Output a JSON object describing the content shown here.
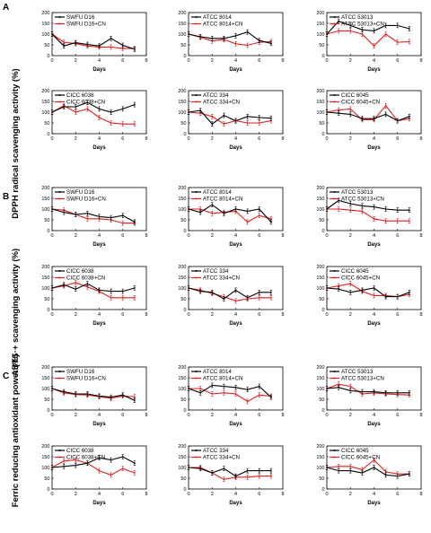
{
  "series_colors": {
    "control": "#000000",
    "cn": "#e02020"
  },
  "x_ticks": [
    "0",
    "2",
    "4",
    "6",
    "8"
  ],
  "y_ticks": [
    "0",
    "50",
    "100",
    "150",
    "200"
  ],
  "x_title": "Days",
  "sections": [
    {
      "letter": "A",
      "ylabel": "DPPH radical scavenging activity (%)"
    },
    {
      "letter": "B",
      "ylabel": "ABTS·+ scavenging activity (%)"
    },
    {
      "letter": "C",
      "ylabel": "Ferric reducing antioxidant power (%)"
    }
  ],
  "chart_data": [
    {
      "type": "line",
      "section": "A",
      "strain": "SWFU D16",
      "x": [
        0,
        1,
        2,
        3,
        4,
        5,
        6,
        7
      ],
      "xlim": [
        0,
        8
      ],
      "ylim": [
        0,
        200
      ],
      "series": [
        {
          "name": "SWFU D16",
          "values": [
            100,
            45,
            60,
            52,
            45,
            80,
            48,
            30
          ]
        },
        {
          "name": "SWFU D16+CN",
          "values": [
            100,
            62,
            56,
            45,
            40,
            40,
            33,
            33
          ]
        }
      ]
    },
    {
      "type": "line",
      "section": "A",
      "strain": "ATCC 8014",
      "x": [
        0,
        1,
        2,
        3,
        4,
        5,
        6,
        7
      ],
      "xlim": [
        0,
        8
      ],
      "ylim": [
        0,
        200
      ],
      "series": [
        {
          "name": "ATCC 8014",
          "values": [
            100,
            88,
            80,
            80,
            92,
            110,
            70,
            57
          ]
        },
        {
          "name": "ATCC 8014+CN",
          "values": [
            100,
            85,
            68,
            75,
            55,
            48,
            62,
            65
          ]
        }
      ]
    },
    {
      "type": "line",
      "section": "A",
      "strain": "ATCC 53013",
      "x": [
        0,
        1,
        2,
        3,
        4,
        5,
        6,
        7
      ],
      "xlim": [
        0,
        8
      ],
      "ylim": [
        0,
        200
      ],
      "series": [
        {
          "name": "ATCC 53013",
          "values": [
            100,
            160,
            140,
            120,
            115,
            140,
            140,
            125
          ]
        },
        {
          "name": "ATCC 53013+CN",
          "values": [
            100,
            115,
            115,
            100,
            45,
            100,
            62,
            65
          ]
        }
      ]
    },
    {
      "type": "line",
      "section": "A",
      "strain": "CICC 6038",
      "x": [
        0,
        1,
        2,
        3,
        4,
        5,
        6,
        7
      ],
      "xlim": [
        0,
        8
      ],
      "ylim": [
        0,
        200
      ],
      "series": [
        {
          "name": "CICC 6038",
          "values": [
            100,
            125,
            125,
            145,
            115,
            100,
            115,
            135
          ]
        },
        {
          "name": "CICC 6038+CN",
          "values": [
            100,
            130,
            100,
            115,
            75,
            50,
            45,
            45
          ]
        }
      ]
    },
    {
      "type": "line",
      "section": "A",
      "strain": "ATCC 334",
      "x": [
        0,
        1,
        2,
        3,
        4,
        5,
        6,
        7
      ],
      "xlim": [
        0,
        8
      ],
      "ylim": [
        0,
        200
      ],
      "series": [
        {
          "name": "ATCC 334",
          "values": [
            100,
            108,
            45,
            85,
            60,
            80,
            75,
            72
          ]
        },
        {
          "name": "ATCC 334+CN",
          "values": [
            100,
            95,
            80,
            45,
            60,
            50,
            50,
            60
          ]
        }
      ]
    },
    {
      "type": "line",
      "section": "A",
      "strain": "CICC 6045",
      "x": [
        0,
        1,
        2,
        3,
        4,
        5,
        6,
        7
      ],
      "xlim": [
        0,
        8
      ],
      "ylim": [
        0,
        200
      ],
      "series": [
        {
          "name": "CICC 6045",
          "values": [
            100,
            95,
            90,
            70,
            70,
            90,
            60,
            80
          ]
        },
        {
          "name": "CICC 6045+CN",
          "values": [
            100,
            110,
            115,
            65,
            65,
            130,
            60,
            70
          ]
        }
      ]
    },
    {
      "type": "line",
      "section": "B",
      "strain": "SWFU D16",
      "x": [
        0,
        1,
        2,
        3,
        4,
        5,
        6,
        7
      ],
      "xlim": [
        0,
        8
      ],
      "ylim": [
        0,
        200
      ],
      "series": [
        {
          "name": "SWFU D16",
          "values": [
            100,
            85,
            75,
            80,
            65,
            60,
            70,
            40
          ]
        },
        {
          "name": "SWFU D16+CN",
          "values": [
            100,
            95,
            75,
            55,
            55,
            50,
            35,
            35
          ]
        }
      ]
    },
    {
      "type": "line",
      "section": "B",
      "strain": "ATCC 8014",
      "x": [
        0,
        1,
        2,
        3,
        4,
        5,
        6,
        7
      ],
      "xlim": [
        0,
        8
      ],
      "ylim": [
        0,
        200
      ],
      "series": [
        {
          "name": "ATCC 8014",
          "values": [
            100,
            85,
            120,
            80,
            100,
            90,
            100,
            40
          ]
        },
        {
          "name": "ATCC 8014+CN",
          "values": [
            100,
            100,
            80,
            85,
            90,
            40,
            70,
            55
          ]
        }
      ]
    },
    {
      "type": "line",
      "section": "B",
      "strain": "ATCC 53013",
      "x": [
        0,
        1,
        2,
        3,
        4,
        5,
        6,
        7
      ],
      "xlim": [
        0,
        8
      ],
      "ylim": [
        0,
        200
      ],
      "series": [
        {
          "name": "ATCC 53013",
          "values": [
            100,
            140,
            125,
            115,
            110,
            100,
            95,
            95
          ]
        },
        {
          "name": "ATCC 53013+CN",
          "values": [
            100,
            100,
            95,
            90,
            55,
            45,
            45,
            45
          ]
        }
      ]
    },
    {
      "type": "line",
      "section": "B",
      "strain": "CICC 6038",
      "x": [
        0,
        1,
        2,
        3,
        4,
        5,
        6,
        7
      ],
      "xlim": [
        0,
        8
      ],
      "ylim": [
        0,
        200
      ],
      "series": [
        {
          "name": "CICC 6038",
          "values": [
            100,
            115,
            95,
            120,
            90,
            85,
            85,
            100
          ]
        },
        {
          "name": "CICC 6038+CN",
          "values": [
            100,
            110,
            125,
            105,
            85,
            55,
            55,
            55
          ]
        }
      ]
    },
    {
      "type": "line",
      "section": "B",
      "strain": "ATCC 334",
      "x": [
        0,
        1,
        2,
        3,
        4,
        5,
        6,
        7
      ],
      "xlim": [
        0,
        8
      ],
      "ylim": [
        0,
        200
      ],
      "series": [
        {
          "name": "ATCC 334",
          "values": [
            100,
            85,
            80,
            50,
            90,
            55,
            80,
            80
          ]
        },
        {
          "name": "ATCC 334+CN",
          "values": [
            100,
            90,
            75,
            60,
            40,
            50,
            55,
            55
          ]
        }
      ]
    },
    {
      "type": "line",
      "section": "B",
      "strain": "CICC 6045",
      "x": [
        0,
        1,
        2,
        3,
        4,
        5,
        6,
        7
      ],
      "xlim": [
        0,
        8
      ],
      "ylim": [
        0,
        200
      ],
      "series": [
        {
          "name": "CICC 6045",
          "values": [
            100,
            95,
            80,
            90,
            100,
            60,
            60,
            80
          ]
        },
        {
          "name": "CICC 6045+CN",
          "values": [
            100,
            110,
            120,
            85,
            65,
            65,
            60,
            70
          ]
        }
      ]
    },
    {
      "type": "line",
      "section": "C",
      "strain": "SWFU D16",
      "x": [
        0,
        1,
        2,
        3,
        4,
        5,
        6,
        7
      ],
      "xlim": [
        0,
        8
      ],
      "ylim": [
        0,
        200
      ],
      "series": [
        {
          "name": "SWFU D16",
          "values": [
            100,
            85,
            75,
            75,
            65,
            60,
            70,
            45
          ]
        },
        {
          "name": "SWFU D16+CN",
          "values": [
            100,
            80,
            72,
            70,
            62,
            55,
            65,
            62
          ]
        }
      ]
    },
    {
      "type": "line",
      "section": "C",
      "strain": "ATCC 8014",
      "x": [
        0,
        1,
        2,
        3,
        4,
        5,
        6,
        7
      ],
      "xlim": [
        0,
        8
      ],
      "ylim": [
        0,
        200
      ],
      "series": [
        {
          "name": "ATCC 8014",
          "values": [
            100,
            80,
            115,
            110,
            105,
            95,
            110,
            60
          ]
        },
        {
          "name": "ATCC 8014+CN",
          "values": [
            100,
            100,
            75,
            80,
            75,
            40,
            70,
            65
          ]
        }
      ]
    },
    {
      "type": "line",
      "section": "C",
      "strain": "ATCC 53013",
      "x": [
        0,
        1,
        2,
        3,
        4,
        5,
        6,
        7
      ],
      "xlim": [
        0,
        8
      ],
      "ylim": [
        0,
        200
      ],
      "series": [
        {
          "name": "ATCC 53013",
          "values": [
            100,
            105,
            90,
            85,
            85,
            80,
            80,
            80
          ]
        },
        {
          "name": "ATCC 53013+CN",
          "values": [
            100,
            120,
            110,
            75,
            80,
            75,
            72,
            70
          ]
        }
      ]
    },
    {
      "type": "line",
      "section": "C",
      "strain": "CICC 6038",
      "x": [
        0,
        1,
        2,
        3,
        4,
        5,
        6,
        7
      ],
      "xlim": [
        0,
        8
      ],
      "ylim": [
        0,
        200
      ],
      "series": [
        {
          "name": "CICC 6038",
          "values": [
            100,
            105,
            110,
            120,
            145,
            135,
            150,
            120
          ]
        },
        {
          "name": "CICC 6038+CN",
          "values": [
            100,
            130,
            135,
            120,
            85,
            65,
            95,
            75
          ]
        }
      ]
    },
    {
      "type": "line",
      "section": "C",
      "strain": "ATCC 334",
      "x": [
        0,
        1,
        2,
        3,
        4,
        5,
        6,
        7
      ],
      "xlim": [
        0,
        8
      ],
      "ylim": [
        0,
        200
      ],
      "series": [
        {
          "name": "ATCC 334",
          "values": [
            100,
            95,
            75,
            95,
            60,
            85,
            85,
            85
          ]
        },
        {
          "name": "ATCC 334+CN",
          "values": [
            100,
            100,
            75,
            45,
            55,
            55,
            60,
            60
          ]
        }
      ]
    },
    {
      "type": "line",
      "section": "C",
      "strain": "CICC 6045",
      "x": [
        0,
        1,
        2,
        3,
        4,
        5,
        6,
        7
      ],
      "xlim": [
        0,
        8
      ],
      "ylim": [
        0,
        200
      ],
      "series": [
        {
          "name": "CICC 6045",
          "values": [
            100,
            85,
            85,
            75,
            100,
            65,
            60,
            70
          ]
        },
        {
          "name": "CICC 6045+CN",
          "values": [
            100,
            105,
            105,
            90,
            135,
            80,
            70,
            70
          ]
        }
      ]
    }
  ]
}
